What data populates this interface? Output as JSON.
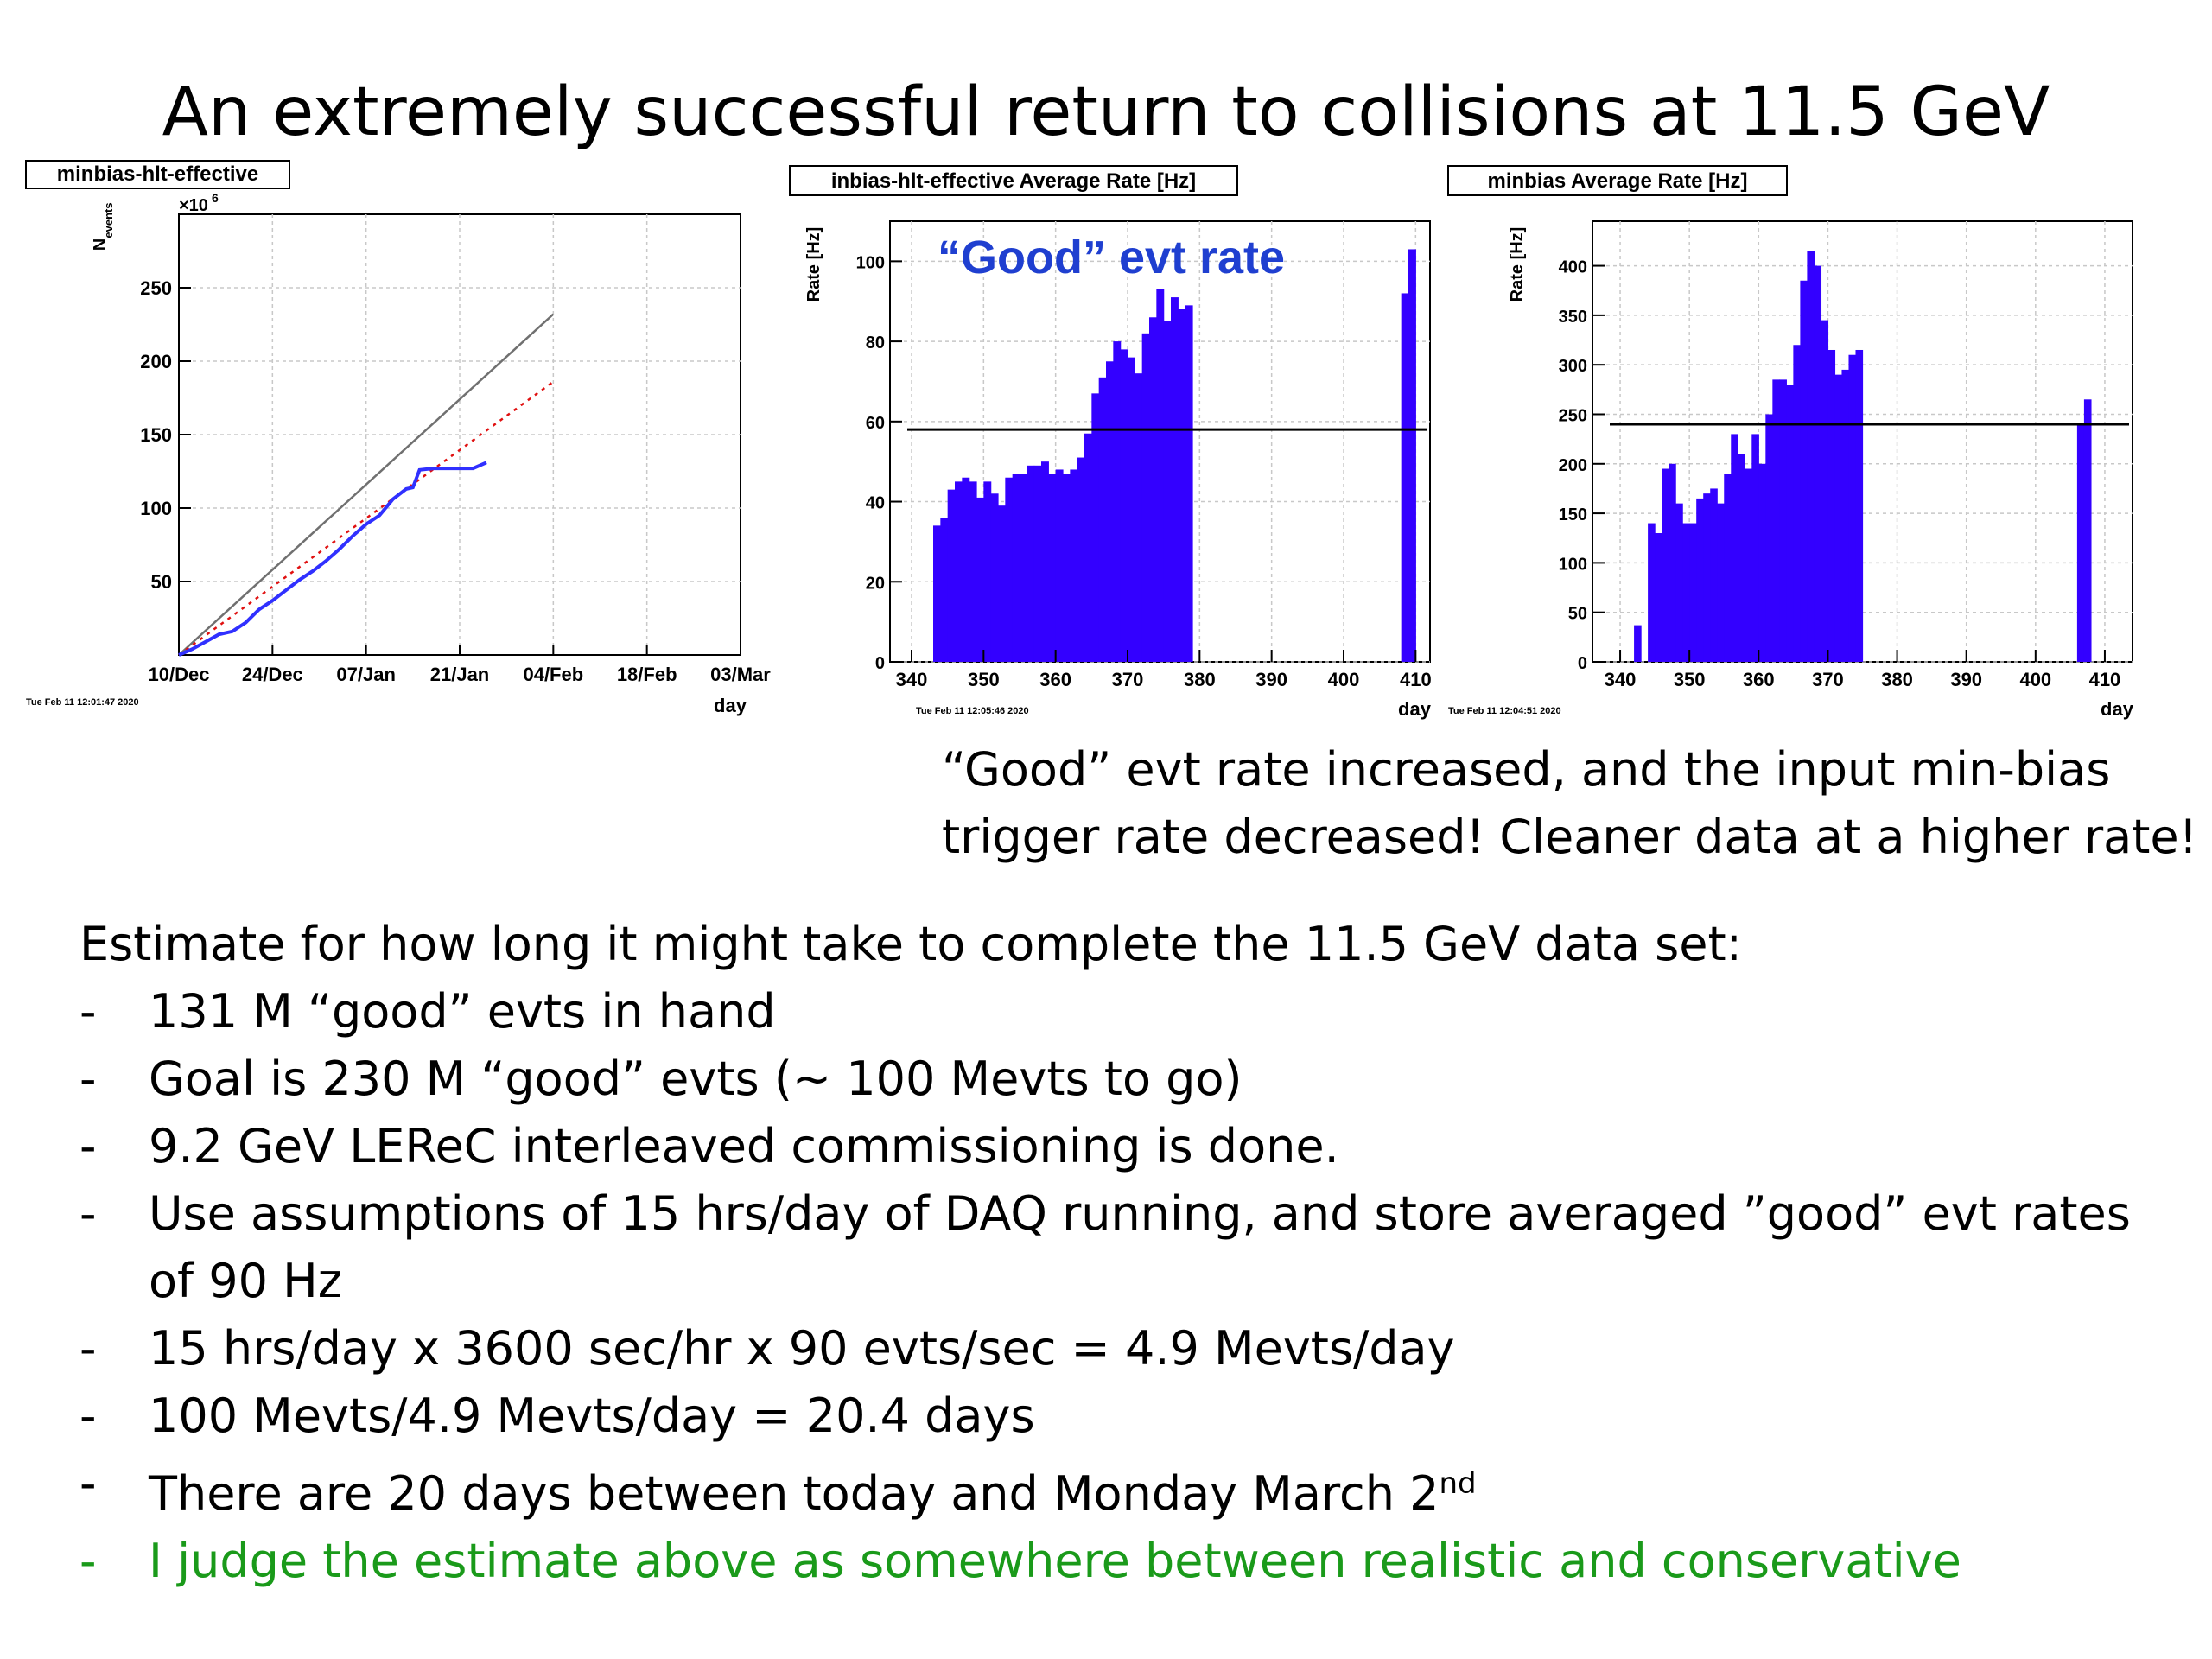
{
  "slide": {
    "title": "An extremely successful return to collisions at 11.5 GeV",
    "note_line1": "“Good” evt rate increased, and the input min-bias",
    "note_line2": "trigger rate decreased! Cleaner data at a higher rate!",
    "estimate_heading": "Estimate for how long it might take to complete the 11.5 GeV data set:",
    "bullets": [
      {
        "dash": "-",
        "text": "131 M “good” evts in hand"
      },
      {
        "dash": "-",
        "text": "Goal is 230 M “good” evts (~ 100 Mevts to go)"
      },
      {
        "dash": "-",
        "text": "9.2 GeV LEReC interleaved commissioning is done."
      },
      {
        "dash": "-",
        "text": "Use assumptions of 15 hrs/day of DAQ running, and store averaged ”good” evt rates of 90 Hz"
      },
      {
        "dash": "-",
        "text": "15 hrs/day x 3600 sec/hr x 90 evts/sec = 4.9 Mevts/day"
      },
      {
        "dash": "-",
        "text": "100 Mevts/4.9 Mevts/day = 20.4 days"
      },
      {
        "dash": "-",
        "text": "There are 20 days between today and Monday March 2",
        "sup": "nd"
      },
      {
        "dash": "-",
        "text": "I judge the estimate above as somewhere between realistic and conservative",
        "color": "#1a9a1a"
      }
    ]
  },
  "chart_data": [
    {
      "type": "line",
      "title": "minbias-hlt-effective",
      "ylabel": "N",
      "ylabel_sub": "events",
      "y_exponent": "×10",
      "y_exponent_power": "6",
      "xlabel": "day",
      "x_ticks": [
        "10/Dec",
        "24/Dec",
        "07/Jan",
        "21/Jan",
        "04/Feb",
        "18/Feb",
        "03/Mar"
      ],
      "y_ticks": [
        "50",
        "100",
        "150",
        "200",
        "250"
      ],
      "xlim": [
        0,
        84
      ],
      "ylim": [
        0,
        300
      ],
      "timestamp": "Tue Feb 11 12:01:47 2020",
      "series": [
        {
          "role": "ideal",
          "color": "#707070",
          "style": "solid",
          "x": [
            0,
            56
          ],
          "y": [
            0,
            232
          ]
        },
        {
          "role": "projection",
          "color": "#e01010",
          "style": "dotted",
          "x": [
            0,
            56
          ],
          "y": [
            0,
            186
          ]
        },
        {
          "role": "actual",
          "color": "#3030ff",
          "style": "solid",
          "x": [
            0,
            2,
            4,
            6,
            8,
            10,
            12,
            14,
            16,
            18,
            20,
            22,
            24,
            26,
            28,
            30,
            32,
            34,
            35,
            36,
            38,
            40,
            42,
            44,
            46
          ],
          "y": [
            0,
            4,
            9,
            14,
            16,
            22,
            31,
            37,
            44,
            51,
            57,
            64,
            72,
            81,
            89,
            95,
            106,
            113,
            114,
            126,
            127,
            127,
            127,
            127,
            131
          ]
        }
      ]
    },
    {
      "type": "bar",
      "title": "inbias-hlt-effective Average Rate [Hz]",
      "annotation": "“Good” evt rate",
      "ylabel": "Rate [Hz]",
      "xlabel": "day",
      "x_ticks": [
        "340",
        "350",
        "360",
        "370",
        "380",
        "390",
        "400",
        "410"
      ],
      "y_ticks": [
        "0",
        "20",
        "40",
        "60",
        "80",
        "100"
      ],
      "xlim": [
        337,
        412
      ],
      "ylim": [
        0,
        110
      ],
      "reference_line": 58,
      "timestamp": "Tue Feb 11 12:05:46 2020",
      "bar_color": "#3300ff",
      "bar_start": 343,
      "values": [
        34,
        36,
        43,
        45,
        46,
        45,
        41,
        45,
        42,
        39,
        46,
        47,
        47,
        49,
        49,
        50,
        47,
        48,
        47,
        48,
        51,
        57,
        67,
        71,
        75,
        80,
        78,
        76,
        72,
        82,
        86,
        93,
        85,
        91,
        88,
        89,
        0,
        0,
        0,
        0,
        0,
        0,
        0,
        0,
        0,
        0,
        0,
        0,
        0,
        0,
        0,
        0,
        0,
        0,
        0,
        0,
        0,
        0,
        0,
        0,
        0,
        0,
        0,
        0,
        0,
        92,
        103,
        0
      ]
    },
    {
      "type": "bar",
      "title": "minbias Average Rate [Hz]",
      "ylabel": "Rate [Hz]",
      "xlabel": "day",
      "x_ticks": [
        "340",
        "350",
        "360",
        "370",
        "380",
        "390",
        "400",
        "410"
      ],
      "y_ticks": [
        "0",
        "50",
        "100",
        "150",
        "200",
        "250",
        "300",
        "350",
        "400"
      ],
      "xlim": [
        336,
        414
      ],
      "ylim": [
        0,
        445
      ],
      "reference_line": 240,
      "timestamp": "Tue Feb 11 12:04:51 2020",
      "bar_color": "#3300ff",
      "bar_start": 342,
      "values": [
        37,
        0,
        140,
        130,
        195,
        200,
        160,
        140,
        140,
        165,
        170,
        175,
        160,
        190,
        230,
        210,
        195,
        230,
        200,
        250,
        285,
        285,
        280,
        320,
        385,
        415,
        400,
        345,
        315,
        290,
        295,
        310,
        315,
        0,
        0,
        0,
        0,
        0,
        0,
        0,
        0,
        0,
        0,
        0,
        0,
        0,
        0,
        0,
        0,
        0,
        0,
        0,
        0,
        0,
        0,
        0,
        0,
        0,
        0,
        0,
        0,
        0,
        0,
        0,
        240,
        265
      ]
    }
  ]
}
